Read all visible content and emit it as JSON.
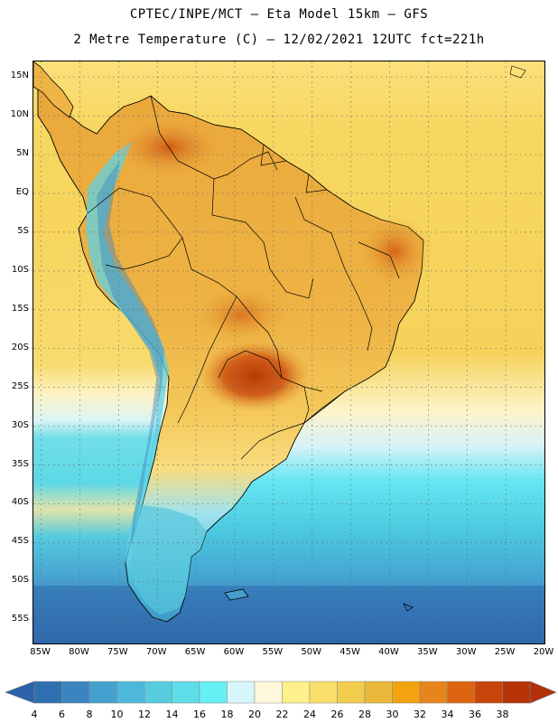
{
  "title": {
    "line1": "CPTEC/INPE/MCT –  Eta Model 15km – GFS",
    "line2": "2 Metre Temperature (C) – 12/02/2021 12UTC fct=221h"
  },
  "map": {
    "variable": "2 Metre Temperature",
    "units": "C",
    "extent": {
      "lon_min": -86,
      "lon_max": -20,
      "lat_min": -58,
      "lat_max": 17
    },
    "lat_ticks": [
      {
        "value": 15,
        "label": "15N"
      },
      {
        "value": 10,
        "label": "10N"
      },
      {
        "value": 5,
        "label": "5N"
      },
      {
        "value": 0,
        "label": "EQ"
      },
      {
        "value": -5,
        "label": "5S"
      },
      {
        "value": -10,
        "label": "10S"
      },
      {
        "value": -15,
        "label": "15S"
      },
      {
        "value": -20,
        "label": "20S"
      },
      {
        "value": -25,
        "label": "25S"
      },
      {
        "value": -30,
        "label": "30S"
      },
      {
        "value": -35,
        "label": "35S"
      },
      {
        "value": -40,
        "label": "40S"
      },
      {
        "value": -45,
        "label": "45S"
      },
      {
        "value": -50,
        "label": "50S"
      },
      {
        "value": -55,
        "label": "55S"
      }
    ],
    "lon_ticks": [
      {
        "value": -85,
        "label": "85W"
      },
      {
        "value": -80,
        "label": "80W"
      },
      {
        "value": -75,
        "label": "75W"
      },
      {
        "value": -70,
        "label": "70W"
      },
      {
        "value": -65,
        "label": "65W"
      },
      {
        "value": -60,
        "label": "60W"
      },
      {
        "value": -55,
        "label": "55W"
      },
      {
        "value": -50,
        "label": "50W"
      },
      {
        "value": -45,
        "label": "45W"
      },
      {
        "value": -40,
        "label": "40W"
      },
      {
        "value": -35,
        "label": "35W"
      },
      {
        "value": -30,
        "label": "30W"
      },
      {
        "value": -25,
        "label": "25W"
      },
      {
        "value": -20,
        "label": "20W"
      }
    ]
  },
  "colorbar": {
    "levels": [
      "4",
      "6",
      "8",
      "10",
      "12",
      "14",
      "16",
      "18",
      "20",
      "22",
      "24",
      "26",
      "28",
      "30",
      "32",
      "34",
      "36",
      "38"
    ],
    "colors": [
      "#2e6fb0",
      "#3a85bf",
      "#46a0cf",
      "#4eb8da",
      "#57ccde",
      "#5edce8",
      "#66f0f5",
      "#d6f6fb",
      "#fdf7dc",
      "#fef08a",
      "#f8df6c",
      "#f1cd4e",
      "#eab83a",
      "#f2a30d",
      "#e8841c",
      "#dc6410",
      "#c7450a",
      "#b83208"
    ],
    "low_end_color": "#2c62a8",
    "high_end_color": "#b3300c"
  }
}
